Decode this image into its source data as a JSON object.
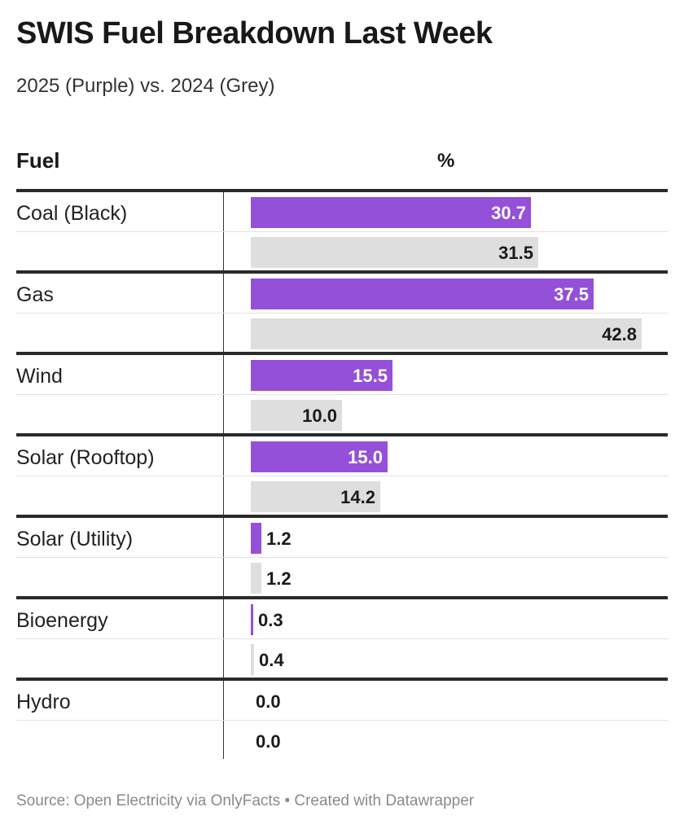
{
  "header": {
    "title": "SWIS Fuel Breakdown Last Week",
    "subtitle": "2025 (Purple) vs. 2024 (Grey)",
    "col_fuel": "Fuel",
    "col_pct": "%"
  },
  "footer": {
    "text": "Source: Open Electricity via OnlyFacts • Created with Datawrapper"
  },
  "colors": {
    "series_2025": "#9450d8",
    "series_2024": "#dedede"
  },
  "chart_data": {
    "type": "bar",
    "title": "SWIS Fuel Breakdown Last Week",
    "subtitle": "2025 (Purple) vs. 2024 (Grey)",
    "xlabel": "%",
    "ylabel": "Fuel",
    "xlim": [
      0,
      42.8
    ],
    "categories": [
      "Coal (Black)",
      "Gas",
      "Wind",
      "Solar (Rooftop)",
      "Solar (Utility)",
      "Bioenergy",
      "Hydro"
    ],
    "series": [
      {
        "values": [
          30.7,
          37.5,
          15.5,
          15.0,
          1.2,
          0.3,
          0.0
        ],
        "labels": [
          "30.7",
          "37.5",
          "15.5",
          "15.0",
          "1.2",
          "0.3",
          "0.0"
        ]
      },
      {
        "values": [
          31.5,
          42.8,
          10.0,
          14.2,
          1.2,
          0.4,
          0.0
        ],
        "labels": [
          "31.5",
          "42.8",
          "10.0",
          "14.2",
          "1.2",
          "0.4",
          "0.0"
        ]
      }
    ]
  }
}
